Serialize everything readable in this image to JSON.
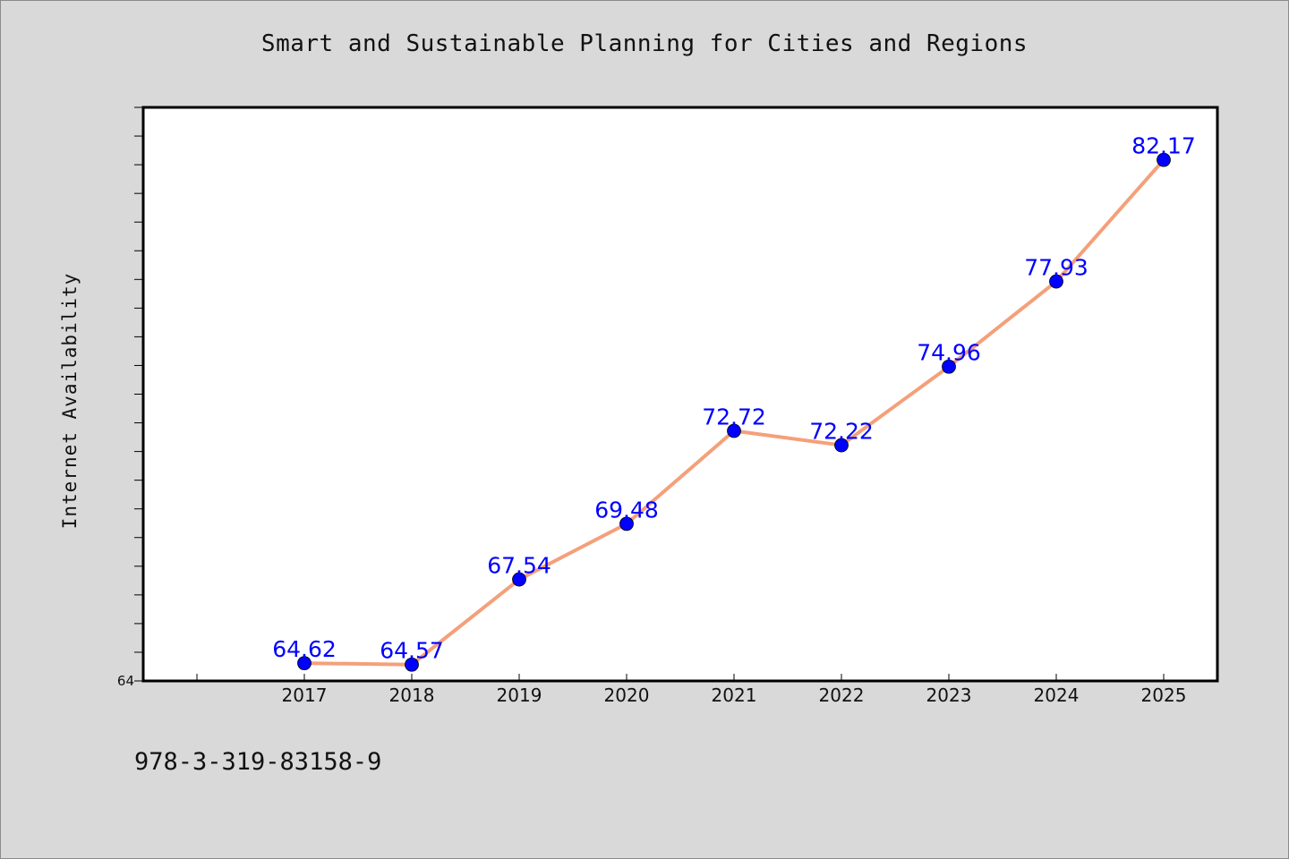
{
  "chart_data": {
    "type": "line",
    "title": "Smart and Sustainable Planning for Cities and Regions",
    "xlabel": "",
    "ylabel": "Internet Availability",
    "categories": [
      "2017",
      "2018",
      "2019",
      "2020",
      "2021",
      "2022",
      "2023",
      "2024",
      "2025"
    ],
    "series": [
      {
        "values": [
          64.62,
          64.57,
          67.54,
          69.48,
          72.72,
          72.22,
          74.96,
          77.93,
          82.17
        ],
        "data_labels": [
          "64.62",
          "64.57",
          "67.54",
          "69.48",
          "72.72",
          "72.22",
          "74.96",
          "77.93",
          "82.17"
        ]
      }
    ],
    "ylim": [
      64,
      84
    ],
    "yticks_labeled": [
      "64"
    ],
    "ytick_step": 1,
    "grid": false,
    "legend": "none",
    "line_color": "#f4a07a",
    "marker_color": "#0000ff",
    "label_color": "#0000ff",
    "background_color": "#d9d9d9",
    "plot_background_color": "#ffffff"
  },
  "footer": {
    "isbn": "978-3-319-83158-9"
  }
}
